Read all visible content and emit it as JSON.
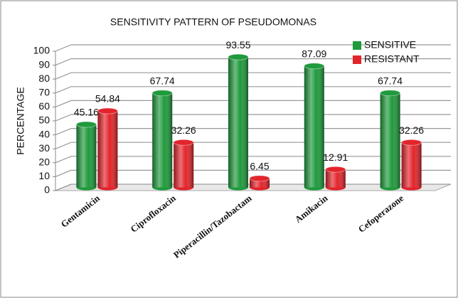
{
  "chart_data": {
    "type": "bar3d",
    "title": "SENSITIVITY PATTERN OF PSEUDOMONAS",
    "ylabel": "PERCENTAGE",
    "categories": [
      "Gentamicin",
      "Ciprofloxacin",
      "Piperacillin/Tazobactam",
      "Amikacin",
      "Cefoperazone"
    ],
    "series": [
      {
        "name": "SENSITIVE",
        "color": "#1f9a3c",
        "values": [
          45.16,
          67.74,
          93.55,
          87.09,
          67.74
        ]
      },
      {
        "name": "RESISTANT",
        "color": "#e3242b",
        "values": [
          54.84,
          32.26,
          6.45,
          12.91,
          32.26
        ]
      }
    ],
    "ylim": [
      0,
      100
    ],
    "yticks": [
      0,
      10,
      20,
      30,
      40,
      50,
      60,
      70,
      80,
      90,
      100
    ],
    "grid": true,
    "legend": "top-right"
  }
}
